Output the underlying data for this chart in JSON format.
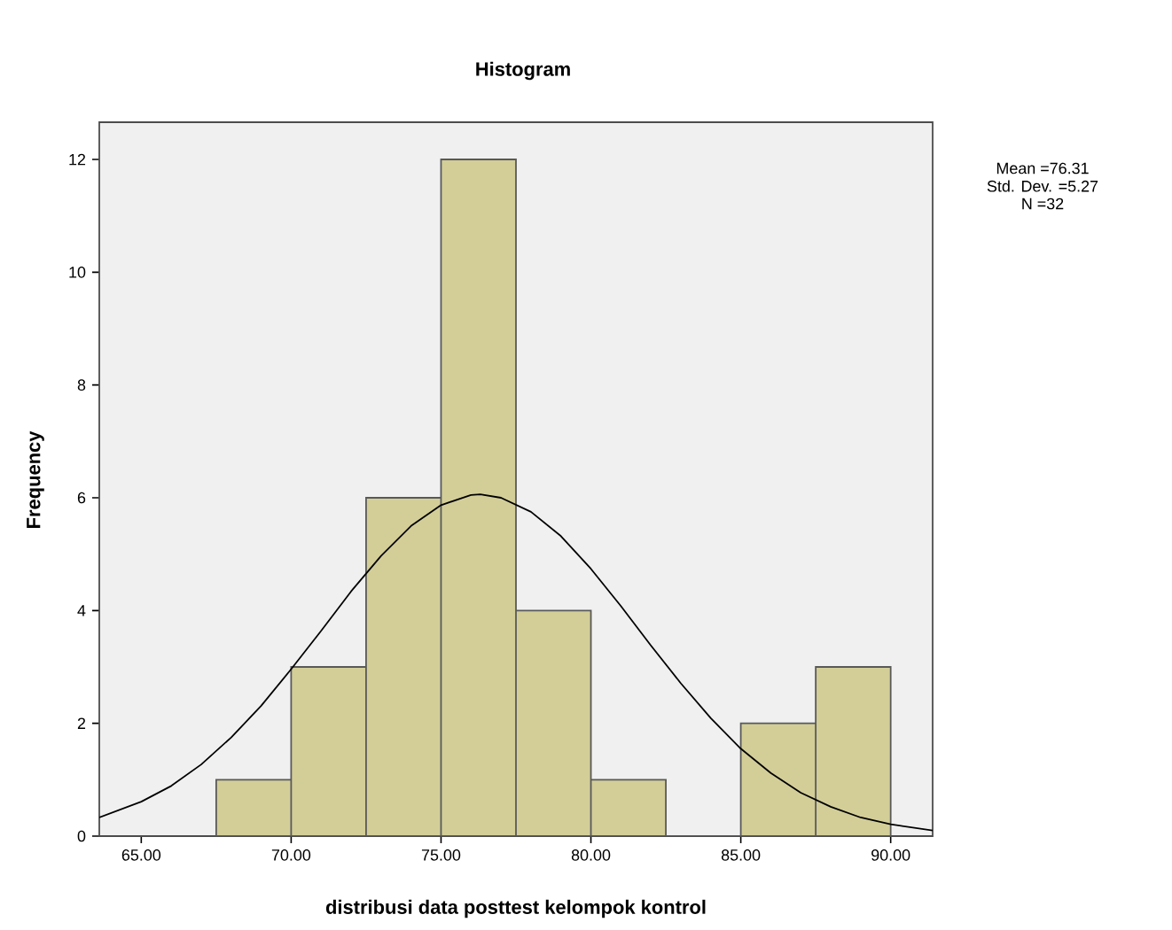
{
  "chart_data": {
    "type": "histogram",
    "title": "Histogram",
    "xlabel": "distribusi data posttest kelompok kontrol",
    "ylabel": "Frequency",
    "annotations": [
      "Mean =76.31",
      "Std. Dev. =5.27",
      "N =32"
    ],
    "series": [
      {
        "color": "#d3ce98",
        "bins": [
          67.5,
          70,
          72.5,
          75,
          77.5,
          80,
          82.5,
          85,
          87.5,
          90
        ],
        "values": [
          1,
          3,
          6,
          12,
          4,
          1,
          0,
          2,
          3
        ]
      },
      {
        "type": "line",
        "color": "#000000",
        "x": [
          63.6,
          65,
          66,
          67,
          68,
          69,
          70,
          71,
          72,
          73,
          74,
          75,
          76,
          76.31,
          77,
          78,
          79,
          80,
          81,
          82,
          83,
          84,
          85,
          86,
          87,
          88,
          89,
          90,
          91.4
        ],
        "values": [
          0.33,
          0.61,
          0.89,
          1.27,
          1.75,
          2.31,
          2.96,
          3.64,
          4.34,
          4.97,
          5.5,
          5.87,
          6.05,
          6.06,
          6.0,
          5.75,
          5.32,
          4.74,
          4.08,
          3.38,
          2.71,
          2.09,
          1.55,
          1.12,
          0.77,
          0.52,
          0.33,
          0.21,
          0.1
        ]
      }
    ],
    "xlim": [
      63.6,
      91.4
    ],
    "ylim": [
      0,
      12.66
    ],
    "xticks": [
      {
        "value": 65,
        "label": "65.00"
      },
      {
        "value": 70,
        "label": "70.00"
      },
      {
        "value": 75,
        "label": "75.00"
      },
      {
        "value": 80,
        "label": "80.00"
      },
      {
        "value": 85,
        "label": "85.00"
      },
      {
        "value": 90,
        "label": "90.00"
      }
    ],
    "yticks": [
      0,
      2,
      4,
      6,
      8,
      10,
      12
    ],
    "grid": false
  }
}
